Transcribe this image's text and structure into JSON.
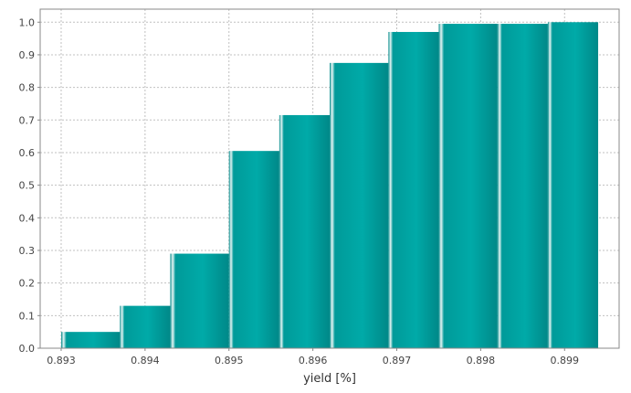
{
  "chart_data": {
    "type": "bar",
    "title": "",
    "xlabel": "yield [%]",
    "ylabel": "",
    "xlim": [
      0.89275,
      0.89965
    ],
    "ylim": [
      0.0,
      1.04
    ],
    "grid": true,
    "x_ticks": [
      "0.893",
      "0.894",
      "0.895",
      "0.896",
      "0.897",
      "0.898",
      "0.899"
    ],
    "y_ticks": [
      "0.0",
      "0.1",
      "0.2",
      "0.3",
      "0.4",
      "0.5",
      "0.6",
      "0.7",
      "0.8",
      "0.9",
      "1.0"
    ],
    "bins": [
      {
        "x0": 0.893,
        "x1": 0.8937,
        "value": 0.05
      },
      {
        "x0": 0.8937,
        "x1": 0.8943,
        "value": 0.13
      },
      {
        "x0": 0.8943,
        "x1": 0.895,
        "value": 0.29
      },
      {
        "x0": 0.895,
        "x1": 0.8956,
        "value": 0.605
      },
      {
        "x0": 0.8956,
        "x1": 0.8962,
        "value": 0.715
      },
      {
        "x0": 0.8962,
        "x1": 0.8969,
        "value": 0.875
      },
      {
        "x0": 0.8969,
        "x1": 0.8975,
        "value": 0.97
      },
      {
        "x0": 0.8975,
        "x1": 0.8982,
        "value": 0.995
      },
      {
        "x0": 0.8982,
        "x1": 0.8988,
        "value": 0.995
      },
      {
        "x0": 0.8988,
        "x1": 0.8994,
        "value": 1.0
      }
    ],
    "colors": {
      "bar_dark": "#008a8a",
      "bar_mid": "#00aaa8",
      "bar_light": "#e8f6f5",
      "grid": "#c0c0c0",
      "axis": "#888888"
    }
  }
}
